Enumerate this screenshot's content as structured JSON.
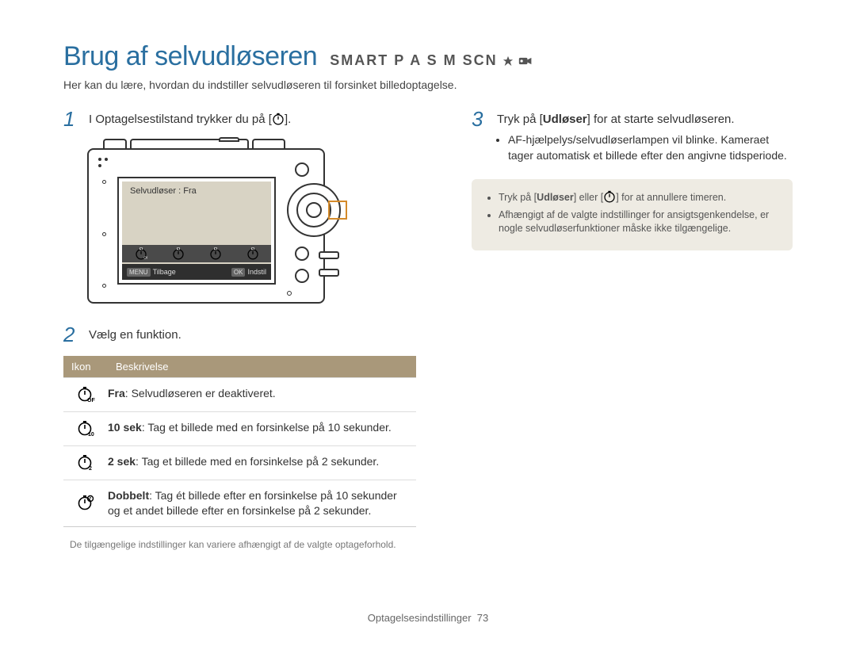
{
  "title": "Brug af selvudløseren",
  "modes_text": "SMART P A S M SCN",
  "intro": "Her kan du lære, hvordan du indstiller selvudløseren til forsinket billedoptagelse.",
  "step1": {
    "num": "1",
    "text_before": "I Optagelsestilstand trykker du på [",
    "text_after": "]."
  },
  "camera_screen": {
    "label": "Selvudløser : Fra",
    "bottom_left_key": "MENU",
    "bottom_left": "Tilbage",
    "bottom_right_key": "OK",
    "bottom_right": "Indstil"
  },
  "step2": {
    "num": "2",
    "text": "Vælg en funktion."
  },
  "table": {
    "head_icon": "Ikon",
    "head_desc": "Beskrivelse",
    "rows": [
      {
        "icon": "off",
        "label_bold": "Fra",
        "desc": ": Selvudløseren er deaktiveret."
      },
      {
        "icon": "10s",
        "label_bold": "10 sek",
        "desc": ": Tag et billede med en forsinkelse på 10 sekunder."
      },
      {
        "icon": "2s",
        "label_bold": "2 sek",
        "desc": ": Tag et billede med en forsinkelse på 2 sekunder."
      },
      {
        "icon": "dbl",
        "label_bold": "Dobbelt",
        "desc": ": Tag ét billede efter en forsinkelse på 10 sekunder og et andet billede efter en forsinkelse på 2 sekunder."
      }
    ]
  },
  "footnote": "De tilgængelige indstillinger kan variere afhængigt af de valgte optageforhold.",
  "step3": {
    "num": "3",
    "text_before": "Tryk på [",
    "bold1": "Udløser",
    "text_after": "] for at starte selvudløseren.",
    "bullets": [
      "AF-hjælpelys/selvudløserlampen vil blinke. Kameraet tager automatisk et billede efter den angivne tidsperiode."
    ]
  },
  "note_box": {
    "items": [
      {
        "text_before": "Tryk på [",
        "bold": "Udløser",
        "text_mid": "] eller [",
        "text_after": "] for at annullere timeren."
      },
      {
        "full": "Afhængigt af de valgte indstillinger for ansigtsgenkendelse, er nogle selvudløserfunktioner måske ikke tilgængelige."
      }
    ]
  },
  "footer": {
    "section": "Optagelsesindstillinger",
    "page": "73"
  },
  "colors": {
    "accent": "#2a6fa0",
    "table_head": "#a9987a",
    "note_bg": "#eeebe3",
    "highlight": "#d48a2a"
  }
}
